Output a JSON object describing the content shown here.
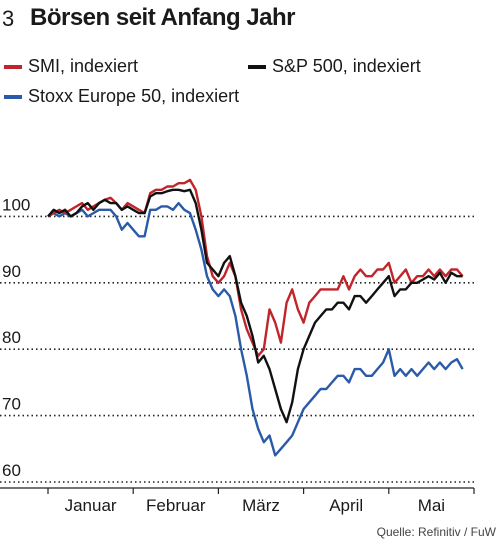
{
  "header": {
    "number": "3",
    "title": "Börsen seit Anfang Jahr"
  },
  "legend": [
    {
      "label": "SMI, indexiert",
      "color": "#c0252b"
    },
    {
      "label": "S&P 500, indexiert",
      "color": "#111111"
    },
    {
      "label": "Stoxx Europe 50, indexiert",
      "color": "#2a5aa8"
    }
  ],
  "source": "Quelle: Refinitiv / FuW",
  "colors": {
    "smi": "#c0252b",
    "sp500": "#111111",
    "stoxx": "#2a5aa8",
    "grid": "#222222"
  },
  "chart_data": {
    "type": "line",
    "title": "Börsen seit Anfang Jahr",
    "ylim": [
      60,
      110
    ],
    "xlim": [
      0,
      150
    ],
    "yticks": [
      60,
      70,
      80,
      90,
      100
    ],
    "xticks": [
      {
        "label": "Januar",
        "x": 15
      },
      {
        "label": "Februar",
        "x": 45
      },
      {
        "label": "März",
        "x": 75
      },
      {
        "label": "April",
        "x": 105
      },
      {
        "label": "Mai",
        "x": 135
      }
    ],
    "grid": "horizontal dotted",
    "series": [
      {
        "name": "SMI, indexiert",
        "color": "#c0252b",
        "x": [
          0,
          2,
          4,
          6,
          8,
          10,
          12,
          14,
          16,
          18,
          20,
          22,
          24,
          26,
          28,
          30,
          32,
          34,
          36,
          38,
          40,
          42,
          44,
          46,
          48,
          50,
          52,
          54,
          56,
          58,
          60,
          62,
          64,
          66,
          68,
          70,
          72,
          74,
          76,
          78,
          80,
          82,
          84,
          86,
          88,
          90,
          92,
          94,
          96,
          98,
          100,
          102,
          104,
          106,
          108,
          110,
          112,
          114,
          116,
          118,
          120,
          122,
          124,
          126,
          128,
          130,
          132,
          134,
          136,
          138,
          140,
          142,
          144,
          146
        ],
        "values": [
          100,
          100.5,
          101,
          100.5,
          101,
          101.5,
          102,
          101,
          101.5,
          102,
          102.5,
          102.8,
          102,
          101,
          102,
          101.5,
          101,
          100.5,
          103.5,
          104,
          104,
          104.5,
          104.5,
          105,
          105,
          105.5,
          104,
          100,
          94,
          91,
          90,
          91,
          93,
          91,
          86,
          83,
          81,
          79,
          80,
          86,
          84,
          81,
          87,
          89,
          86,
          84,
          87,
          88,
          89,
          89,
          89,
          89,
          91,
          89,
          91,
          92,
          91,
          91,
          92,
          92,
          93,
          90,
          91,
          92,
          90,
          91,
          91,
          92,
          91,
          92,
          91,
          92,
          92,
          91
        ]
      },
      {
        "name": "S&P 500, indexiert",
        "color": "#111111",
        "x": [
          0,
          2,
          4,
          6,
          8,
          10,
          12,
          14,
          16,
          18,
          20,
          22,
          24,
          26,
          28,
          30,
          32,
          34,
          36,
          38,
          40,
          42,
          44,
          46,
          48,
          50,
          52,
          54,
          56,
          58,
          60,
          62,
          64,
          66,
          68,
          70,
          72,
          74,
          76,
          78,
          80,
          82,
          84,
          86,
          88,
          90,
          92,
          94,
          96,
          98,
          100,
          102,
          104,
          106,
          108,
          110,
          112,
          114,
          116,
          118,
          120,
          122,
          124,
          126,
          128,
          130,
          132,
          134,
          136,
          138,
          140,
          142,
          144,
          146
        ],
        "values": [
          100,
          101,
          100.5,
          101,
          100,
          100.5,
          101.5,
          102,
          101,
          102,
          102.5,
          102,
          102,
          101,
          101.5,
          101,
          100.5,
          100.5,
          103,
          103.5,
          103.5,
          103.8,
          104,
          104,
          103.8,
          104,
          102,
          98,
          93,
          92,
          91,
          93,
          94,
          91,
          87,
          85,
          82,
          78,
          79,
          77,
          74,
          71,
          69,
          72,
          77,
          80,
          82,
          84,
          85,
          86,
          86,
          87,
          87,
          86,
          88,
          88,
          87,
          88,
          89,
          90,
          91,
          88,
          89,
          89,
          90,
          90,
          90.5,
          91,
          90.5,
          91.5,
          90,
          91.5,
          91,
          91
        ]
      },
      {
        "name": "Stoxx Europe 50, indexiert",
        "color": "#2a5aa8",
        "x": [
          0,
          2,
          4,
          6,
          8,
          10,
          12,
          14,
          16,
          18,
          20,
          22,
          24,
          26,
          28,
          30,
          32,
          34,
          36,
          38,
          40,
          42,
          44,
          46,
          48,
          50,
          52,
          54,
          56,
          58,
          60,
          62,
          64,
          66,
          68,
          70,
          72,
          74,
          76,
          78,
          80,
          82,
          84,
          86,
          88,
          90,
          92,
          94,
          96,
          98,
          100,
          102,
          104,
          106,
          108,
          110,
          112,
          114,
          116,
          118,
          120,
          122,
          124,
          126,
          128,
          130,
          132,
          134,
          136,
          138,
          140,
          142,
          144,
          146
        ],
        "values": [
          100,
          100.5,
          100,
          100.5,
          100,
          100.5,
          101,
          100,
          100.5,
          101,
          101,
          101,
          100,
          98,
          99,
          98,
          97,
          97,
          101,
          101,
          101.5,
          101.5,
          101,
          102,
          101,
          100.5,
          98,
          95,
          91,
          89,
          88,
          89,
          88,
          85,
          80,
          76,
          71,
          68,
          66,
          67,
          64,
          65,
          66,
          67,
          69,
          71,
          72,
          73,
          74,
          74,
          75,
          76,
          76,
          75,
          77,
          77,
          76,
          76,
          77,
          78,
          80,
          76,
          77,
          76,
          77,
          76,
          77,
          78,
          77,
          78,
          77,
          78,
          78.5,
          77
        ]
      }
    ]
  }
}
